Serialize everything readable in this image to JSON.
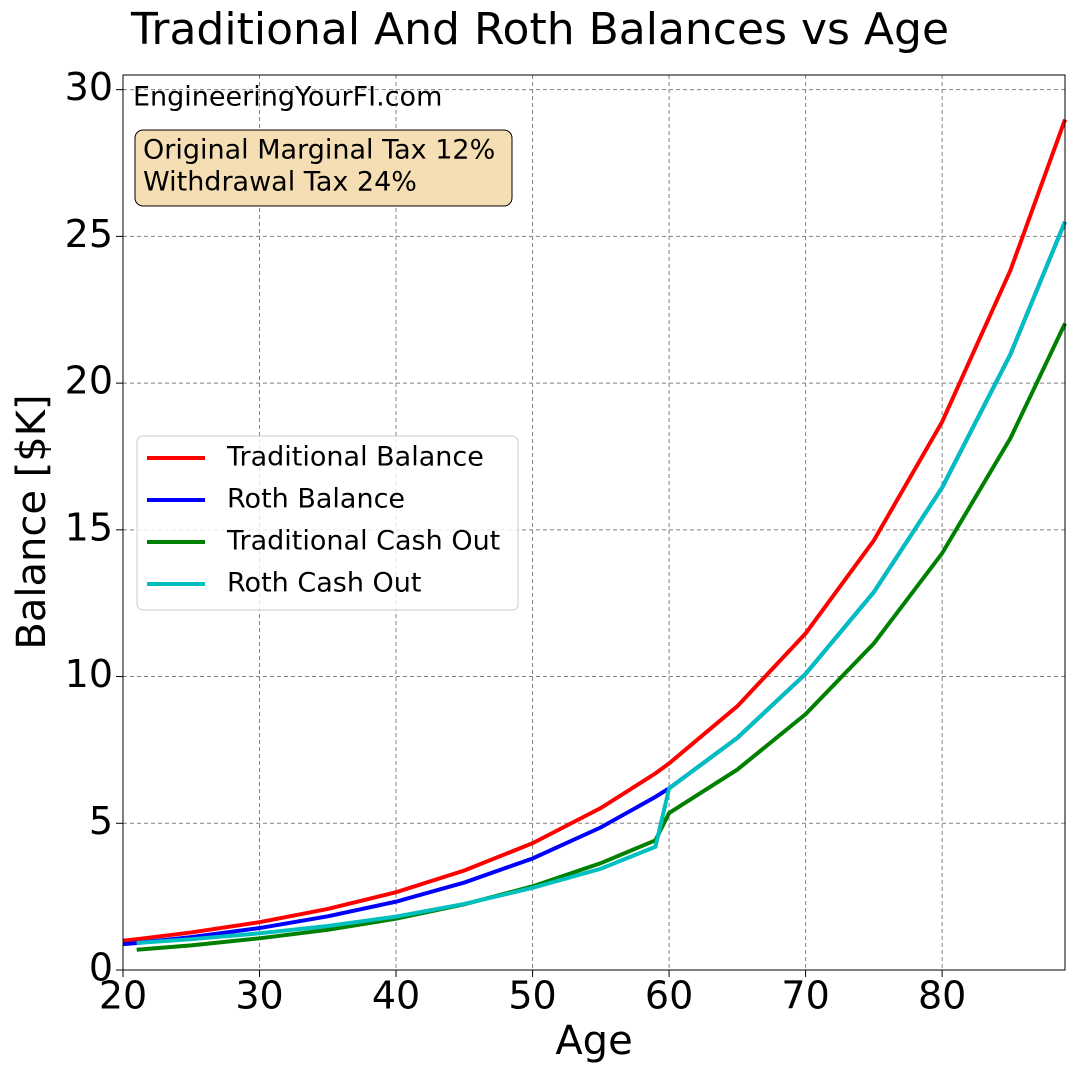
{
  "chart_data": {
    "type": "line",
    "title": "Traditional And Roth Balances vs Age",
    "xlabel": "Age",
    "ylabel": "Balance [$K]",
    "watermark": "EngineeringYourFI.com",
    "annotation_box": [
      "Original Marginal Tax 12%",
      "Withdrawal Tax 24%"
    ],
    "x": [
      20,
      21,
      25,
      30,
      35,
      40,
      45,
      50,
      55,
      59,
      60,
      65,
      70,
      75,
      80,
      85,
      89
    ],
    "series": [
      {
        "name": "Traditional Balance",
        "color": "#ff0000",
        "values": [
          1.0,
          1.05,
          1.28,
          1.63,
          2.08,
          2.65,
          3.39,
          4.32,
          5.52,
          6.7,
          7.04,
          8.99,
          11.47,
          14.64,
          18.68,
          23.84,
          28.98
        ]
      },
      {
        "name": "Roth Balance",
        "color": "#0000ff",
        "values": [
          0.88,
          0.92,
          1.12,
          1.43,
          1.83,
          2.33,
          2.98,
          3.8,
          4.86,
          5.9,
          6.19,
          7.91,
          10.09,
          12.88,
          16.44,
          20.98,
          25.5
        ]
      },
      {
        "name": "Traditional Cash Out",
        "color": "#008000",
        "values": [
          null,
          0.69,
          0.84,
          1.08,
          1.37,
          1.75,
          2.24,
          2.85,
          3.64,
          4.42,
          5.35,
          6.83,
          8.72,
          11.13,
          14.2,
          18.12,
          22.03
        ]
      },
      {
        "name": "Roth Cash Out",
        "color": "#00bfbf",
        "values": [
          null,
          0.92,
          1.05,
          1.25,
          1.5,
          1.82,
          2.25,
          2.8,
          3.45,
          4.2,
          6.19,
          7.91,
          10.09,
          12.88,
          16.44,
          20.98,
          25.5
        ]
      }
    ],
    "xlim": [
      20,
      89
    ],
    "xticks": [
      20,
      30,
      40,
      50,
      60,
      70,
      80
    ],
    "ylim": [
      0,
      30.5
    ],
    "yticks": [
      0,
      5,
      10,
      15,
      20,
      25,
      30
    ],
    "grid": true,
    "legend": "center left"
  }
}
